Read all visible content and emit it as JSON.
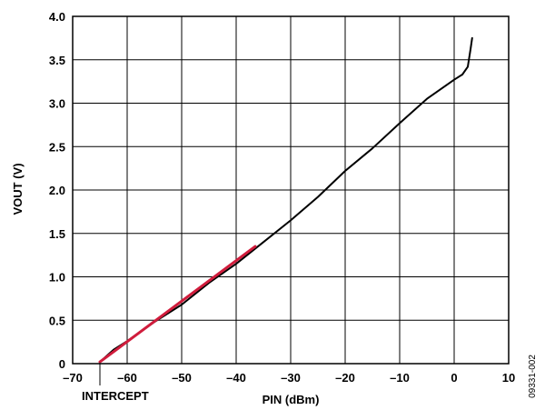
{
  "chart_data": {
    "type": "line",
    "xlabel": "PIN (dBm)",
    "ylabel": "VOUT (V)",
    "xlim": [
      -70,
      10
    ],
    "ylim": [
      0,
      4.0
    ],
    "x_ticks": [
      "–70",
      "–60",
      "–50",
      "–40",
      "–30",
      "–20",
      "–10",
      "0",
      "10"
    ],
    "y_ticks": [
      "0",
      "0.5",
      "1.0",
      "1.5",
      "2.0",
      "2.5",
      "3.0",
      "3.5",
      "4.0"
    ],
    "grid": true,
    "series": [
      {
        "color": "#000000",
        "points": [
          [
            -65,
            0.02
          ],
          [
            -62.5,
            0.16
          ],
          [
            -60,
            0.26
          ],
          [
            -55,
            0.48
          ],
          [
            -50,
            0.68
          ],
          [
            -45,
            0.93
          ],
          [
            -40,
            1.15
          ],
          [
            -35,
            1.4
          ],
          [
            -30,
            1.65
          ],
          [
            -25,
            1.92
          ],
          [
            -20,
            2.22
          ],
          [
            -15,
            2.48
          ],
          [
            -10,
            2.77
          ],
          [
            -5,
            3.05
          ],
          [
            0,
            3.27
          ],
          [
            1.5,
            3.33
          ],
          [
            2.5,
            3.42
          ],
          [
            3,
            3.62
          ],
          [
            3.3,
            3.75
          ]
        ]
      },
      {
        "color": "#d01c3c",
        "points": [
          [
            -65,
            0.02
          ],
          [
            -36.5,
            1.35
          ]
        ]
      }
    ],
    "annotations": [
      {
        "text": "INTERCEPT",
        "x": -65,
        "y": 0
      }
    ]
  },
  "figure_id": "09331-002"
}
